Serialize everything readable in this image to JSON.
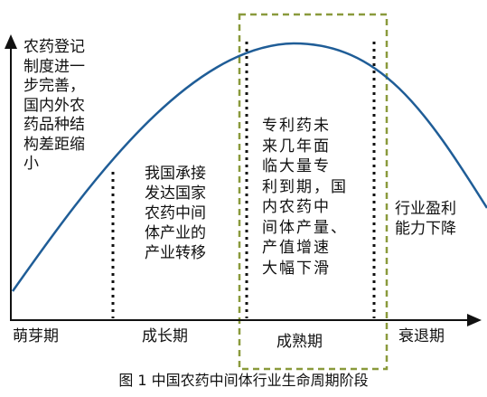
{
  "stages": [
    {
      "id": "sprout",
      "label": "萌芽期",
      "desc": [
        "农药登记",
        "制度进一",
        "步完善，",
        "国内外农",
        "药品种结",
        "构差距缩",
        "小"
      ]
    },
    {
      "id": "growth",
      "label": "成长期",
      "desc": [
        "我国承接",
        "发达国家",
        "农药中间",
        "体产业的",
        "产业转移"
      ]
    },
    {
      "id": "mature",
      "label": "成熟期",
      "desc": [
        "专利药未",
        "来几年面",
        "临大量专",
        "利到期，国",
        "内农药中",
        "间体产量、",
        "产值增速",
        "大幅下滑"
      ]
    },
    {
      "id": "decline",
      "label": "衰退期",
      "desc": [
        "行业盈利",
        "能力下降"
      ]
    }
  ],
  "caption": "图 1  中国农药中间体行业生命周期阶段",
  "colors": {
    "curve": "#1f5d97",
    "highlight_box": "#8a9a3c",
    "axis": "#111111",
    "divider": "#111111"
  }
}
